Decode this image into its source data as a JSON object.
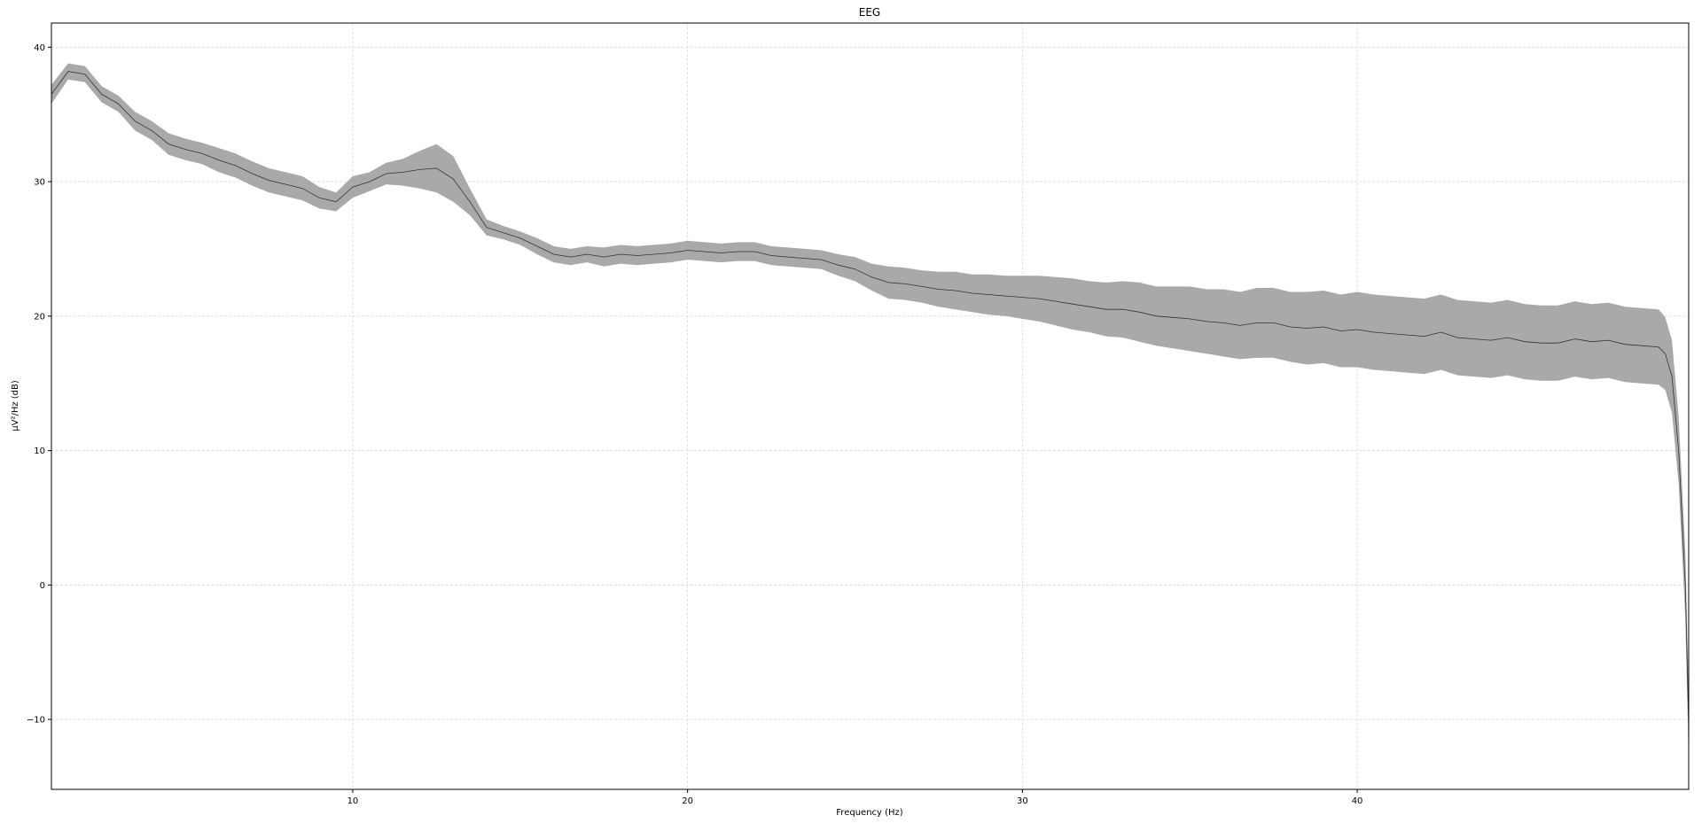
{
  "chart_data": {
    "type": "line",
    "title": "EEG",
    "xlabel": "Frequency (Hz)",
    "ylabel": "µV²/Hz (dB)",
    "xlim": [
      1,
      49.9
    ],
    "ylim": [
      -15.2,
      41.8
    ],
    "x_ticks": [
      10,
      20,
      30,
      40
    ],
    "y_ticks": [
      -10,
      0,
      10,
      20,
      30,
      40
    ],
    "x_tick_labels": [
      "10",
      "20",
      "30",
      "40"
    ],
    "y_tick_labels": [
      "−10",
      "0",
      "10",
      "20",
      "30",
      "40"
    ],
    "grid": true,
    "line_color": "#333333",
    "band_color": "#a9a9a9",
    "series": [
      {
        "x": [
          1.0,
          1.5,
          2.0,
          2.5,
          3.0,
          3.5,
          4.0,
          4.5,
          5.0,
          5.5,
          6.0,
          6.5,
          7.0,
          7.5,
          8.0,
          8.5,
          9.0,
          9.5,
          10.0,
          10.5,
          11.0,
          11.5,
          12.0,
          12.5,
          13.0,
          13.5,
          14.0,
          14.5,
          15.0,
          15.5,
          16.0,
          16.5,
          17.0,
          17.5,
          18.0,
          18.5,
          19.0,
          19.5,
          20.0,
          20.5,
          21.0,
          21.5,
          22.0,
          22.5,
          23.0,
          23.5,
          24.0,
          24.5,
          25.0,
          25.5,
          26.0,
          26.5,
          27.0,
          27.5,
          28.0,
          28.5,
          29.0,
          29.5,
          30.0,
          30.5,
          31.0,
          31.5,
          32.0,
          32.5,
          33.0,
          33.5,
          34.0,
          34.5,
          35.0,
          35.5,
          36.0,
          36.5,
          37.0,
          37.5,
          38.0,
          38.5,
          39.0,
          39.5,
          40.0,
          40.5,
          41.0,
          41.5,
          42.0,
          42.5,
          43.0,
          43.5,
          44.0,
          44.5,
          45.0,
          45.5,
          46.0,
          46.5,
          47.0,
          47.5,
          48.0,
          48.5,
          49.0,
          49.2,
          49.4,
          49.6,
          49.8,
          49.9
        ],
        "mean": [
          36.5,
          38.2,
          38.0,
          36.5,
          35.8,
          34.5,
          33.8,
          32.8,
          32.4,
          32.1,
          31.6,
          31.2,
          30.6,
          30.1,
          29.8,
          29.5,
          28.8,
          28.5,
          29.6,
          30.0,
          30.6,
          30.7,
          30.9,
          31.0,
          30.2,
          28.5,
          26.6,
          26.2,
          25.8,
          25.2,
          24.6,
          24.4,
          24.6,
          24.4,
          24.6,
          24.5,
          24.6,
          24.7,
          24.9,
          24.8,
          24.7,
          24.8,
          24.8,
          24.5,
          24.4,
          24.3,
          24.2,
          23.8,
          23.5,
          22.9,
          22.5,
          22.4,
          22.2,
          22.0,
          21.9,
          21.7,
          21.6,
          21.5,
          21.4,
          21.3,
          21.1,
          20.9,
          20.7,
          20.5,
          20.5,
          20.3,
          20.0,
          19.9,
          19.8,
          19.6,
          19.5,
          19.3,
          19.5,
          19.5,
          19.2,
          19.1,
          19.2,
          18.9,
          19.0,
          18.8,
          18.7,
          18.6,
          18.5,
          18.8,
          18.4,
          18.3,
          18.2,
          18.4,
          18.1,
          18.0,
          18.0,
          18.3,
          18.1,
          18.2,
          17.9,
          17.8,
          17.7,
          17.2,
          15.5,
          10.0,
          0.0,
          -10.5
        ],
        "lower": [
          35.8,
          37.6,
          37.4,
          35.9,
          35.2,
          33.8,
          33.1,
          32.0,
          31.6,
          31.3,
          30.7,
          30.3,
          29.7,
          29.2,
          28.9,
          28.6,
          28.0,
          27.8,
          28.8,
          29.3,
          29.8,
          29.7,
          29.5,
          29.2,
          28.5,
          27.5,
          26.0,
          25.7,
          25.3,
          24.6,
          24.0,
          23.8,
          24.0,
          23.7,
          23.9,
          23.8,
          23.9,
          24.0,
          24.2,
          24.1,
          24.0,
          24.1,
          24.1,
          23.8,
          23.7,
          23.6,
          23.5,
          23.0,
          22.6,
          21.9,
          21.3,
          21.2,
          21.0,
          20.7,
          20.5,
          20.3,
          20.1,
          20.0,
          19.8,
          19.6,
          19.3,
          19.0,
          18.8,
          18.5,
          18.4,
          18.1,
          17.8,
          17.6,
          17.4,
          17.2,
          17.0,
          16.8,
          16.9,
          16.9,
          16.6,
          16.4,
          16.5,
          16.2,
          16.2,
          16.0,
          15.9,
          15.8,
          15.7,
          16.0,
          15.6,
          15.5,
          15.4,
          15.6,
          15.3,
          15.2,
          15.2,
          15.5,
          15.3,
          15.4,
          15.1,
          15.0,
          14.9,
          14.5,
          12.8,
          7.5,
          -2.5,
          -13.0
        ],
        "upper": [
          37.2,
          38.8,
          38.6,
          37.1,
          36.4,
          35.2,
          34.5,
          33.6,
          33.2,
          32.9,
          32.5,
          32.1,
          31.5,
          31.0,
          30.7,
          30.4,
          29.6,
          29.2,
          30.4,
          30.7,
          31.4,
          31.7,
          32.3,
          32.8,
          31.9,
          29.5,
          27.2,
          26.7,
          26.3,
          25.8,
          25.2,
          25.0,
          25.2,
          25.1,
          25.3,
          25.2,
          25.3,
          25.4,
          25.6,
          25.5,
          25.4,
          25.5,
          25.5,
          25.2,
          25.1,
          25.0,
          24.9,
          24.6,
          24.4,
          23.9,
          23.7,
          23.6,
          23.4,
          23.3,
          23.3,
          23.1,
          23.1,
          23.0,
          23.0,
          23.0,
          22.9,
          22.8,
          22.6,
          22.5,
          22.6,
          22.5,
          22.2,
          22.2,
          22.2,
          22.0,
          22.0,
          21.8,
          22.1,
          22.1,
          21.8,
          21.8,
          21.9,
          21.6,
          21.8,
          21.6,
          21.5,
          21.4,
          21.3,
          21.6,
          21.2,
          21.1,
          21.0,
          21.2,
          20.9,
          20.8,
          20.8,
          21.1,
          20.9,
          21.0,
          20.7,
          20.6,
          20.5,
          19.9,
          18.2,
          12.5,
          2.5,
          -8.0
        ]
      }
    ]
  }
}
